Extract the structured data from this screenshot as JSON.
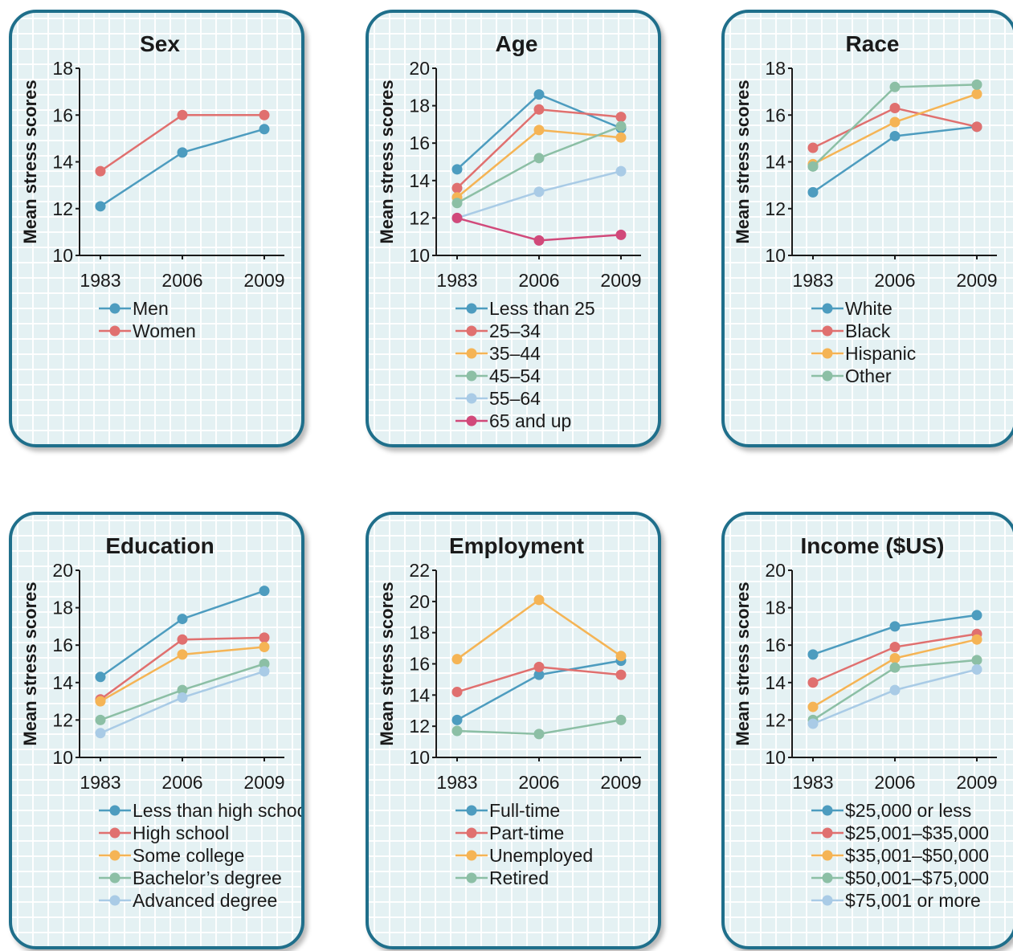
{
  "chart_data": [
    {
      "type": "line",
      "title": "Sex",
      "ylabel": "Mean stress scores",
      "xlabel": "",
      "categories": [
        "1983",
        "2006",
        "2009"
      ],
      "yticks": [
        10,
        12,
        14,
        16,
        18
      ],
      "ylim": [
        10,
        18
      ],
      "series": [
        {
          "name": "Men",
          "color": "#4d9cbf",
          "values": [
            12.1,
            14.4,
            15.4
          ]
        },
        {
          "name": "Women",
          "color": "#e0706f",
          "values": [
            13.6,
            16.0,
            16.0
          ]
        }
      ]
    },
    {
      "type": "line",
      "title": "Age",
      "ylabel": "Mean stress scores",
      "xlabel": "",
      "categories": [
        "1983",
        "2006",
        "2009"
      ],
      "yticks": [
        10,
        12,
        14,
        16,
        18,
        20
      ],
      "ylim": [
        10,
        20
      ],
      "series": [
        {
          "name": "Less than 25",
          "color": "#4d9cbf",
          "values": [
            14.6,
            18.6,
            16.8
          ]
        },
        {
          "name": "25–34",
          "color": "#e0706f",
          "values": [
            13.6,
            17.8,
            17.4
          ]
        },
        {
          "name": "35–44",
          "color": "#f5b455",
          "values": [
            13.1,
            16.7,
            16.3
          ]
        },
        {
          "name": "45–54",
          "color": "#8cbfa5",
          "values": [
            12.8,
            15.2,
            16.9
          ]
        },
        {
          "name": "55–64",
          "color": "#a9cbe6",
          "values": [
            12.0,
            13.4,
            14.5
          ]
        },
        {
          "name": "65 and up",
          "color": "#d1497a",
          "values": [
            12.0,
            10.8,
            11.1
          ]
        }
      ]
    },
    {
      "type": "line",
      "title": "Race",
      "ylabel": "Mean stress scores",
      "xlabel": "",
      "categories": [
        "1983",
        "2006",
        "2009"
      ],
      "yticks": [
        10,
        12,
        14,
        16,
        18
      ],
      "ylim": [
        10,
        18
      ],
      "series": [
        {
          "name": "White",
          "color": "#4d9cbf",
          "values": [
            12.7,
            15.1,
            15.5
          ]
        },
        {
          "name": "Black",
          "color": "#e0706f",
          "values": [
            14.6,
            16.3,
            15.5
          ]
        },
        {
          "name": "Hispanic",
          "color": "#f5b455",
          "values": [
            13.9,
            15.7,
            16.9
          ]
        },
        {
          "name": "Other",
          "color": "#8cbfa5",
          "values": [
            13.8,
            17.2,
            17.3
          ]
        }
      ]
    },
    {
      "type": "line",
      "title": "Education",
      "ylabel": "Mean stress scores",
      "xlabel": "",
      "categories": [
        "1983",
        "2006",
        "2009"
      ],
      "yticks": [
        10,
        12,
        14,
        16,
        18,
        20
      ],
      "ylim": [
        10,
        20
      ],
      "series": [
        {
          "name": "Less than high school",
          "color": "#4d9cbf",
          "values": [
            14.3,
            17.4,
            18.9
          ]
        },
        {
          "name": "High school",
          "color": "#e0706f",
          "values": [
            13.1,
            16.3,
            16.4
          ]
        },
        {
          "name": "Some college",
          "color": "#f5b455",
          "values": [
            13.0,
            15.5,
            15.9
          ]
        },
        {
          "name": "Bachelor’s degree",
          "color": "#8cbfa5",
          "values": [
            12.0,
            13.6,
            15.0
          ]
        },
        {
          "name": "Advanced degree",
          "color": "#a9cbe6",
          "values": [
            11.3,
            13.2,
            14.6
          ]
        }
      ]
    },
    {
      "type": "line",
      "title": "Employment",
      "ylabel": "Mean stress scores",
      "xlabel": "",
      "categories": [
        "1983",
        "2006",
        "2009"
      ],
      "yticks": [
        10,
        12,
        14,
        16,
        18,
        20,
        22
      ],
      "ylim": [
        10,
        22
      ],
      "series": [
        {
          "name": "Full-time",
          "color": "#4d9cbf",
          "values": [
            12.4,
            15.3,
            16.2
          ]
        },
        {
          "name": "Part-time",
          "color": "#e0706f",
          "values": [
            14.2,
            15.8,
            15.3
          ]
        },
        {
          "name": "Unemployed",
          "color": "#f5b455",
          "values": [
            16.3,
            20.1,
            16.5
          ]
        },
        {
          "name": "Retired",
          "color": "#8cbfa5",
          "values": [
            11.7,
            11.5,
            12.4
          ]
        }
      ]
    },
    {
      "type": "line",
      "title": "Income ($US)",
      "ylabel": "Mean stress scores",
      "xlabel": "",
      "categories": [
        "1983",
        "2006",
        "2009"
      ],
      "yticks": [
        10,
        12,
        14,
        16,
        18,
        20
      ],
      "ylim": [
        10,
        20
      ],
      "series": [
        {
          "name": "$25,000 or less",
          "color": "#4d9cbf",
          "values": [
            15.5,
            17.0,
            17.6
          ]
        },
        {
          "name": "$25,001–$35,000",
          "color": "#e0706f",
          "values": [
            14.0,
            15.9,
            16.6
          ]
        },
        {
          "name": "$35,001–$50,000",
          "color": "#f5b455",
          "values": [
            12.7,
            15.3,
            16.3
          ]
        },
        {
          "name": "$50,001–$75,000",
          "color": "#8cbfa5",
          "values": [
            12.0,
            14.8,
            15.2
          ]
        },
        {
          "name": "$75,001 or more",
          "color": "#a9cbe6",
          "values": [
            11.8,
            13.6,
            14.7
          ]
        }
      ]
    }
  ]
}
